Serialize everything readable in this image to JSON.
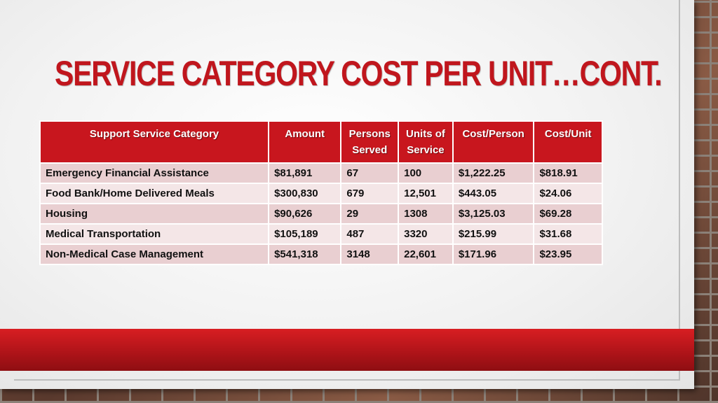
{
  "slide": {
    "title": "SERVICE CATEGORY COST PER UNIT…CONT."
  },
  "table": {
    "headers": {
      "category": "Support Service Category",
      "amount": "Amount",
      "persons_served": "Persons Served",
      "units_of_service": "Units of Service",
      "cost_per_person": "Cost/Person",
      "cost_per_unit": "Cost/Unit"
    },
    "rows": [
      {
        "category": "Emergency Financial Assistance",
        "amount": "$81,891",
        "persons": "67",
        "units": "100",
        "cost_person": "$1,222.25",
        "cost_unit": "$818.91"
      },
      {
        "category": "Food Bank/Home Delivered Meals",
        "amount": "$300,830",
        "persons": "679",
        "units": "12,501",
        "cost_person": "$443.05",
        "cost_unit": "$24.06"
      },
      {
        "category": "Housing",
        "amount": "$90,626",
        "persons": "29",
        "units": "1308",
        "cost_person": "$3,125.03",
        "cost_unit": "$69.28"
      },
      {
        "category": "Medical Transportation",
        "amount": "$105,189",
        "persons": "487",
        "units": "3320",
        "cost_person": "$215.99",
        "cost_unit": "$31.68"
      },
      {
        "category": "Non-Medical Case Management",
        "amount": "$541,318",
        "persons": "3148",
        "units": "22,601",
        "cost_person": "$171.96",
        "cost_unit": "$23.95"
      }
    ]
  },
  "colors": {
    "accent_red": "#c0161d",
    "header_red": "#c8161e",
    "row_odd": "#e9cfd1",
    "row_even": "#f4e6e7"
  }
}
